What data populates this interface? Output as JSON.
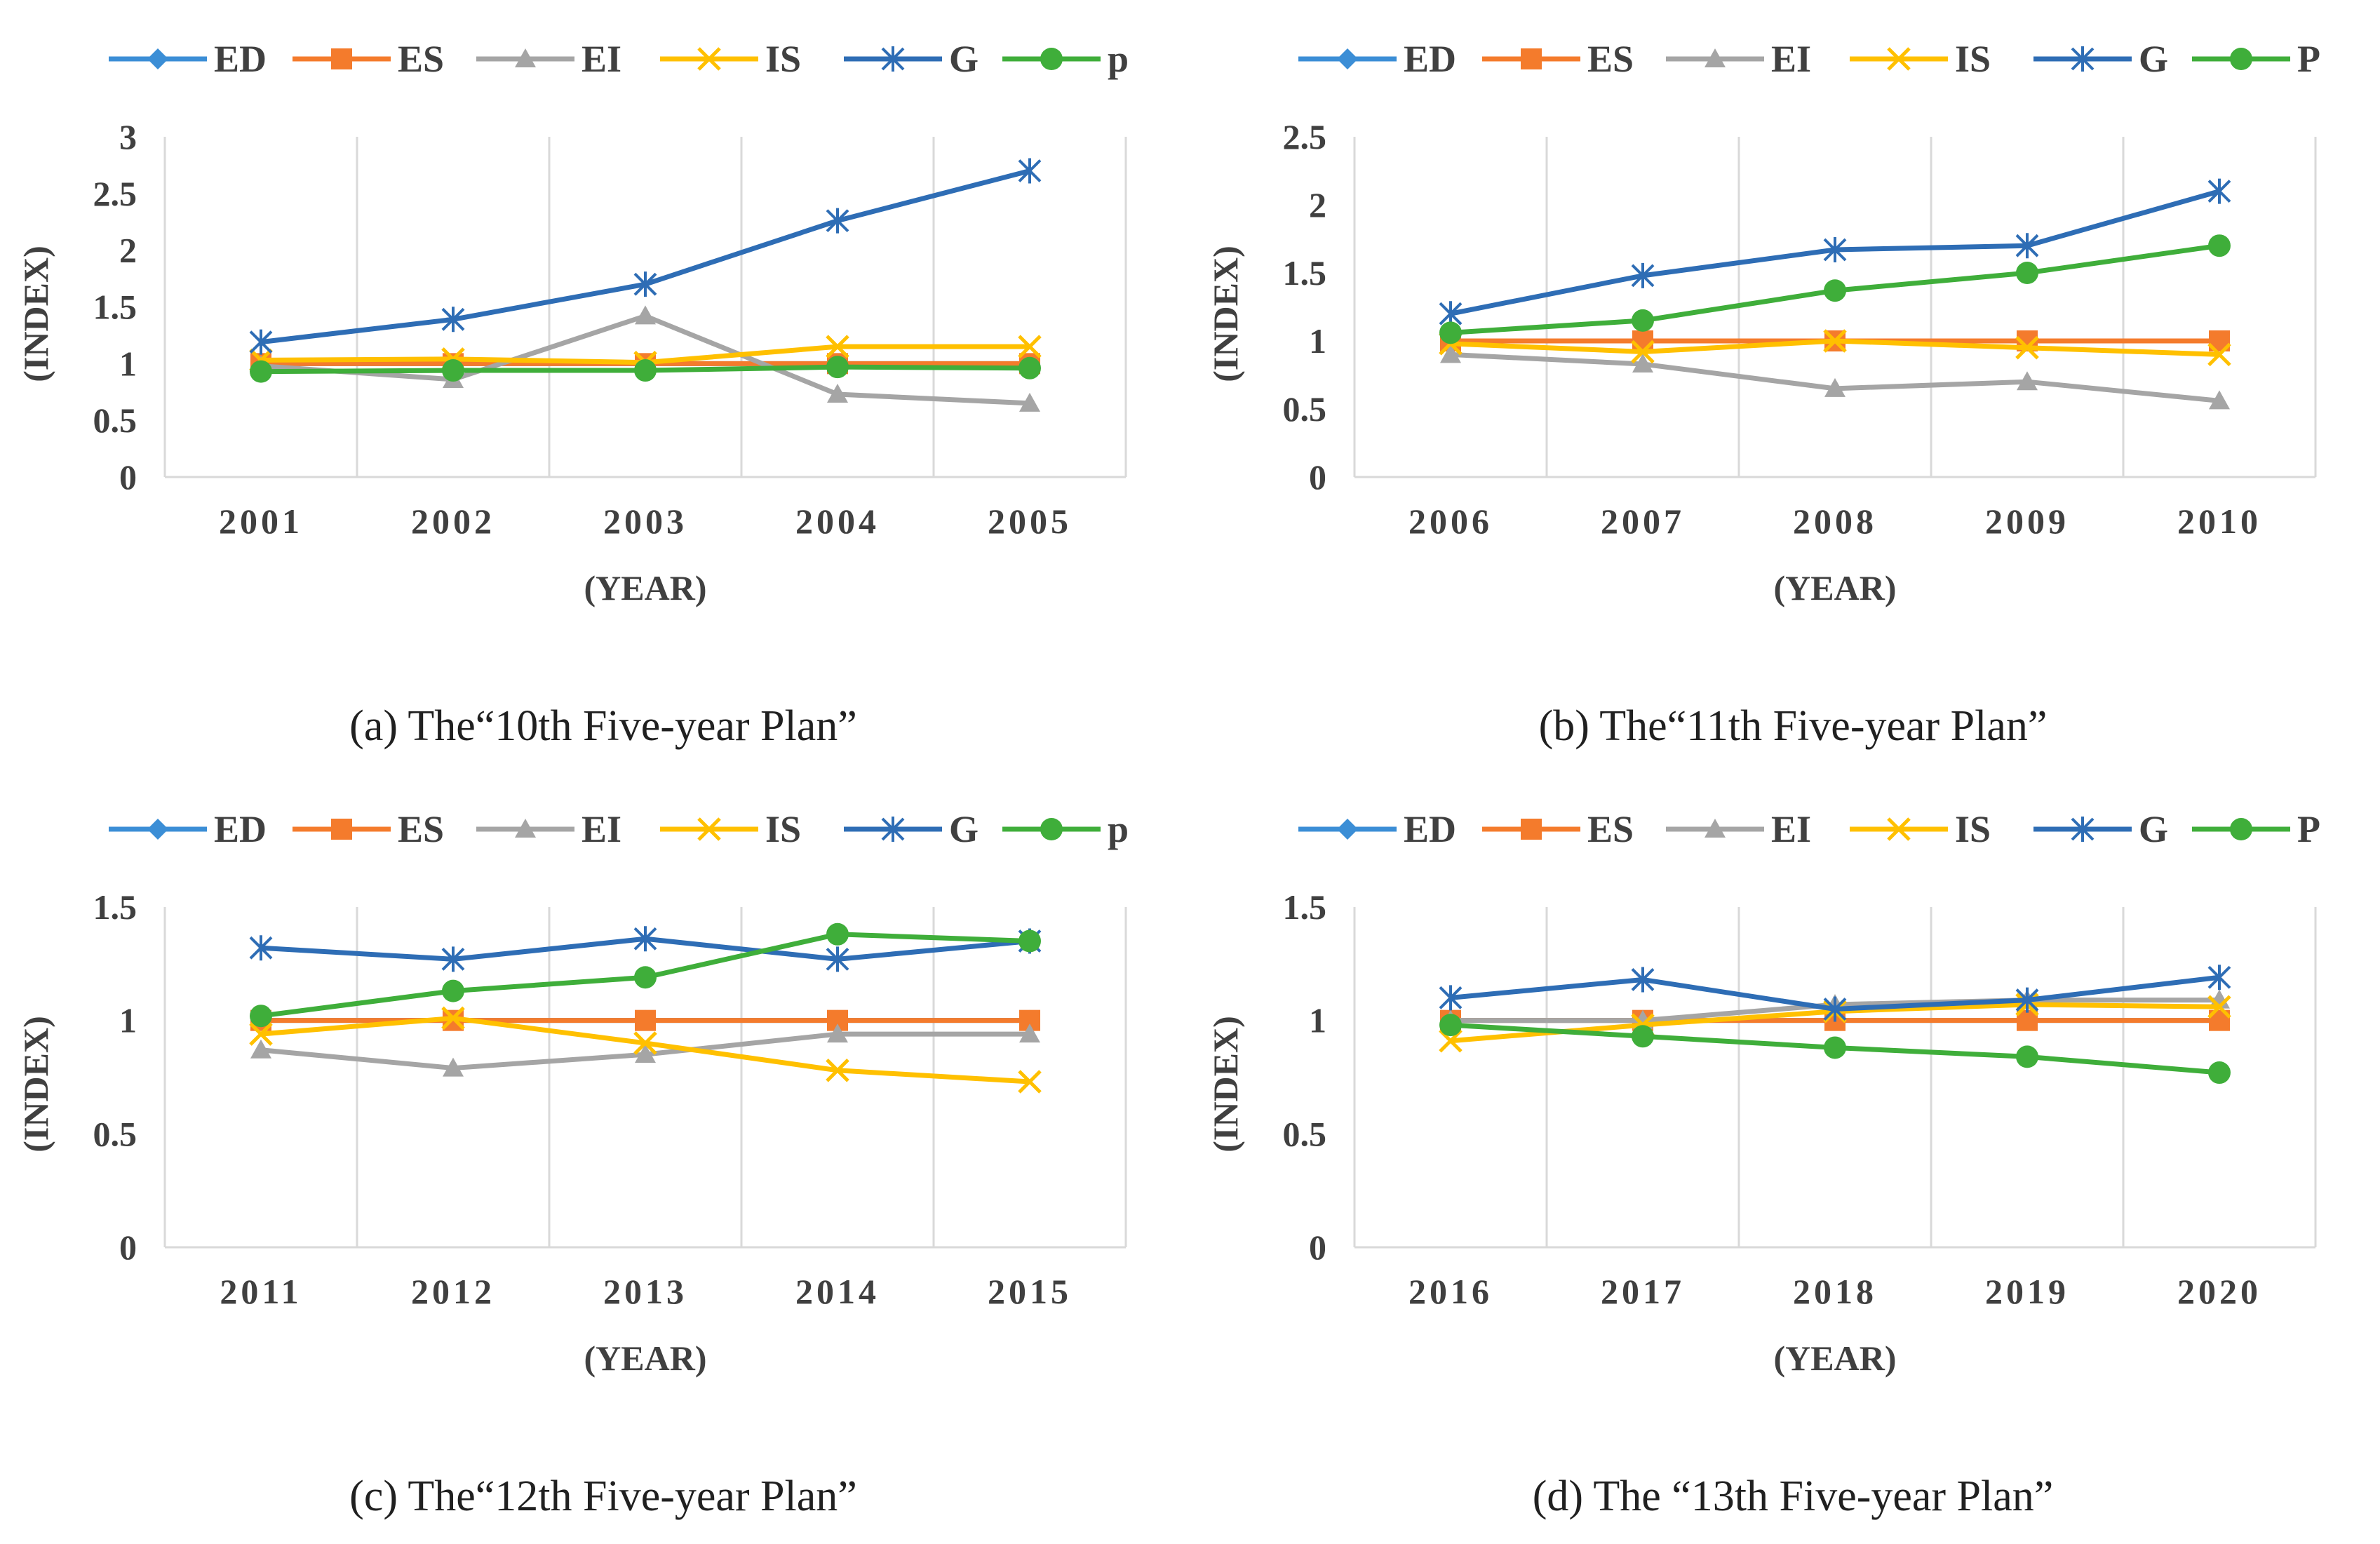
{
  "series_colors": {
    "ED": "#3b8ed6",
    "ES": "#f47b2c",
    "EI": "#a5a5a5",
    "IS": "#ffc000",
    "G": "#2e6db5",
    "P": "#3fae3a"
  },
  "gridline_color": "#d9d9d9",
  "chart_data": [
    {
      "type": "line",
      "caption": "(a)  The“10th Five-year Plan”",
      "xlabel": "(YEAR)",
      "ylabel": "(INDEX)",
      "ylim": [
        0,
        3
      ],
      "yticks": [
        "0",
        "0.5",
        "1",
        "1.5",
        "2",
        "2.5",
        "3"
      ],
      "grid": "vertical",
      "legend_position": "top",
      "categories": [
        "2001",
        "2002",
        "2003",
        "2004",
        "2005"
      ],
      "series": [
        {
          "name": "ED",
          "marker": "diamond",
          "values": [
            1.0,
            1.0,
            1.0,
            1.0,
            1.0
          ]
        },
        {
          "name": "ES",
          "marker": "square",
          "values": [
            1.0,
            1.0,
            1.0,
            1.0,
            1.0
          ]
        },
        {
          "name": "EI",
          "marker": "triangle",
          "values": [
            0.98,
            0.86,
            1.42,
            0.73,
            0.65
          ]
        },
        {
          "name": "IS",
          "marker": "x",
          "values": [
            1.03,
            1.04,
            1.01,
            1.15,
            1.15
          ]
        },
        {
          "name": "G",
          "marker": "star",
          "values": [
            1.19,
            1.39,
            1.7,
            2.26,
            2.7
          ]
        },
        {
          "name": "p",
          "marker": "circle",
          "values": [
            0.93,
            0.94,
            0.94,
            0.97,
            0.96
          ]
        }
      ]
    },
    {
      "type": "line",
      "caption": "(b)  The“11th Five-year Plan”",
      "xlabel": "(YEAR)",
      "ylabel": "(INDEX)",
      "ylim": [
        0,
        2.5
      ],
      "yticks": [
        "0",
        "0.5",
        "1",
        "1.5",
        "2",
        "2.5"
      ],
      "grid": "vertical",
      "legend_position": "top",
      "categories": [
        "2006",
        "2007",
        "2008",
        "2009",
        "2010"
      ],
      "series": [
        {
          "name": "ED",
          "marker": "diamond",
          "values": [
            1.0,
            1.0,
            1.0,
            1.0,
            1.0
          ]
        },
        {
          "name": "ES",
          "marker": "square",
          "values": [
            1.0,
            1.0,
            1.0,
            1.0,
            1.0
          ]
        },
        {
          "name": "EI",
          "marker": "triangle",
          "values": [
            0.9,
            0.83,
            0.65,
            0.7,
            0.56
          ]
        },
        {
          "name": "IS",
          "marker": "x",
          "values": [
            0.98,
            0.92,
            1.0,
            0.95,
            0.9
          ]
        },
        {
          "name": "G",
          "marker": "star",
          "values": [
            1.2,
            1.48,
            1.67,
            1.7,
            2.1
          ]
        },
        {
          "name": "P",
          "marker": "circle",
          "values": [
            1.06,
            1.15,
            1.37,
            1.5,
            1.7
          ]
        }
      ]
    },
    {
      "type": "line",
      "caption": "(c)  The“12th Five-year Plan”",
      "xlabel": "(YEAR)",
      "ylabel": "(INDEX)",
      "ylim": [
        0,
        1.5
      ],
      "yticks": [
        "0",
        "0.5",
        "1",
        "1.5"
      ],
      "grid": "vertical",
      "legend_position": "top",
      "categories": [
        "2011",
        "2012",
        "2013",
        "2014",
        "2015"
      ],
      "series": [
        {
          "name": "ED",
          "marker": "diamond",
          "values": [
            1.0,
            1.0,
            1.0,
            1.0,
            1.0
          ]
        },
        {
          "name": "ES",
          "marker": "square",
          "values": [
            1.0,
            1.0,
            1.0,
            1.0,
            1.0
          ]
        },
        {
          "name": "EI",
          "marker": "triangle",
          "values": [
            0.87,
            0.79,
            0.85,
            0.94,
            0.94
          ]
        },
        {
          "name": "IS",
          "marker": "x",
          "values": [
            0.94,
            1.01,
            0.9,
            0.78,
            0.73
          ]
        },
        {
          "name": "G",
          "marker": "star",
          "values": [
            1.32,
            1.27,
            1.36,
            1.27,
            1.35
          ]
        },
        {
          "name": "p",
          "marker": "circle",
          "values": [
            1.02,
            1.13,
            1.19,
            1.38,
            1.35
          ]
        }
      ]
    },
    {
      "type": "line",
      "caption": "(d) The “13th Five-year Plan”",
      "xlabel": "(YEAR)",
      "ylabel": "(INDEX)",
      "ylim": [
        0,
        1.5
      ],
      "yticks": [
        "0",
        "0.5",
        "1",
        "1.5"
      ],
      "grid": "vertical",
      "legend_position": "top",
      "categories": [
        "2016",
        "2017",
        "2018",
        "2019",
        "2020"
      ],
      "series": [
        {
          "name": "ED",
          "marker": "diamond",
          "values": [
            1.0,
            1.0,
            1.0,
            1.0,
            1.0
          ]
        },
        {
          "name": "ES",
          "marker": "square",
          "values": [
            1.0,
            1.0,
            1.0,
            1.0,
            1.0
          ]
        },
        {
          "name": "EI",
          "marker": "triangle",
          "values": [
            1.0,
            1.0,
            1.07,
            1.09,
            1.09
          ]
        },
        {
          "name": "IS",
          "marker": "x",
          "values": [
            0.91,
            0.98,
            1.04,
            1.07,
            1.06
          ]
        },
        {
          "name": "G",
          "marker": "star",
          "values": [
            1.1,
            1.18,
            1.05,
            1.09,
            1.19
          ]
        },
        {
          "name": "P",
          "marker": "circle",
          "values": [
            0.98,
            0.93,
            0.88,
            0.84,
            0.77
          ]
        }
      ]
    }
  ]
}
